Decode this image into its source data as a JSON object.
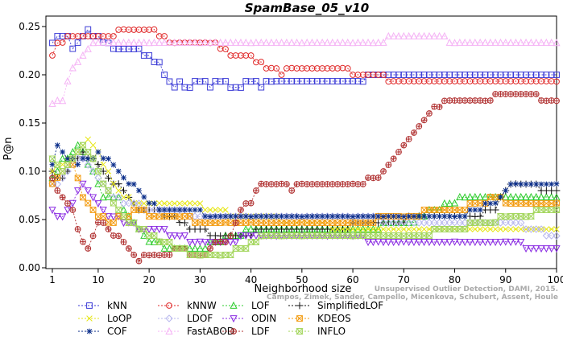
{
  "chart_data": {
    "type": "line",
    "title": "SpamBase_05_v10",
    "xlabel": "Neighborhood size",
    "ylabel": "P@n",
    "xlim": [
      1,
      100
    ],
    "ylim": [
      0,
      0.25
    ],
    "x_ticks": [
      1,
      10,
      20,
      30,
      40,
      50,
      60,
      70,
      80,
      90,
      100
    ],
    "y_ticks": [
      0.0,
      0.05,
      0.1,
      0.15,
      0.2,
      0.25
    ],
    "grid": false,
    "legend_position": "bottom",
    "series": [
      {
        "name": "kNN",
        "color": "#3b3bd6",
        "marker": "square",
        "dash": "2,2",
        "keypoints": [
          [
            1,
            0.233
          ],
          [
            2,
            0.24
          ],
          [
            4,
            0.24
          ],
          [
            5,
            0.227
          ],
          [
            7,
            0.24
          ],
          [
            8,
            0.247
          ],
          [
            9,
            0.24
          ],
          [
            12,
            0.233
          ],
          [
            13,
            0.227
          ],
          [
            18,
            0.227
          ],
          [
            19,
            0.22
          ],
          [
            22,
            0.213
          ],
          [
            23,
            0.2
          ],
          [
            24,
            0.193
          ],
          [
            25,
            0.187
          ],
          [
            26,
            0.193
          ],
          [
            27,
            0.187
          ],
          [
            30,
            0.193
          ],
          [
            32,
            0.187
          ],
          [
            34,
            0.193
          ],
          [
            37,
            0.187
          ],
          [
            40,
            0.193
          ],
          [
            42,
            0.187
          ],
          [
            44,
            0.193
          ],
          [
            62,
            0.193
          ],
          [
            63,
            0.2
          ],
          [
            100,
            0.2
          ]
        ]
      },
      {
        "name": "kNNW",
        "color": "#e02a2a",
        "marker": "circle",
        "dash": "2,2",
        "keypoints": [
          [
            1,
            0.22
          ],
          [
            2,
            0.233
          ],
          [
            4,
            0.24
          ],
          [
            10,
            0.24
          ],
          [
            12,
            0.24
          ],
          [
            13,
            0.24
          ],
          [
            15,
            0.247
          ],
          [
            21,
            0.247
          ],
          [
            22,
            0.24
          ],
          [
            25,
            0.233
          ],
          [
            32,
            0.233
          ],
          [
            34,
            0.227
          ],
          [
            37,
            0.22
          ],
          [
            40,
            0.22
          ],
          [
            41,
            0.213
          ],
          [
            44,
            0.207
          ],
          [
            46,
            0.2
          ],
          [
            48,
            0.207
          ],
          [
            58,
            0.207
          ],
          [
            60,
            0.2
          ],
          [
            66,
            0.2
          ],
          [
            67,
            0.193
          ],
          [
            100,
            0.193
          ]
        ]
      },
      {
        "name": "LOF",
        "color": "#2ecc2e",
        "marker": "triangle-up",
        "dash": "2,2",
        "keypoints": [
          [
            1,
            0.093
          ],
          [
            3,
            0.113
          ],
          [
            5,
            0.12
          ],
          [
            6,
            0.127
          ],
          [
            7,
            0.12
          ],
          [
            8,
            0.107
          ],
          [
            9,
            0.1
          ],
          [
            10,
            0.087
          ],
          [
            11,
            0.073
          ],
          [
            14,
            0.073
          ],
          [
            15,
            0.06
          ],
          [
            18,
            0.04
          ],
          [
            20,
            0.027
          ],
          [
            24,
            0.02
          ],
          [
            30,
            0.02
          ],
          [
            36,
            0.033
          ],
          [
            40,
            0.04
          ],
          [
            55,
            0.04
          ],
          [
            60,
            0.04
          ],
          [
            72,
            0.047
          ],
          [
            76,
            0.06
          ],
          [
            80,
            0.067
          ],
          [
            82,
            0.073
          ],
          [
            100,
            0.073
          ]
        ]
      },
      {
        "name": "SimplifiedLOF",
        "color": "#111111",
        "marker": "plus",
        "dash": "2,2",
        "keypoints": [
          [
            1,
            0.1
          ],
          [
            3,
            0.093
          ],
          [
            5,
            0.113
          ],
          [
            7,
            0.12
          ],
          [
            9,
            0.113
          ],
          [
            10,
            0.107
          ],
          [
            11,
            0.1
          ],
          [
            12,
            0.093
          ],
          [
            14,
            0.087
          ],
          [
            16,
            0.073
          ],
          [
            18,
            0.06
          ],
          [
            22,
            0.06
          ],
          [
            24,
            0.053
          ],
          [
            26,
            0.047
          ],
          [
            28,
            0.04
          ],
          [
            30,
            0.04
          ],
          [
            34,
            0.033
          ],
          [
            38,
            0.033
          ],
          [
            42,
            0.04
          ],
          [
            56,
            0.04
          ],
          [
            64,
            0.047
          ],
          [
            70,
            0.047
          ],
          [
            72,
            0.053
          ],
          [
            84,
            0.053
          ],
          [
            86,
            0.06
          ],
          [
            88,
            0.06
          ],
          [
            90,
            0.08
          ],
          [
            92,
            0.087
          ],
          [
            100,
            0.08
          ]
        ]
      },
      {
        "name": "LoOP",
        "color": "#e6e617",
        "marker": "x",
        "dash": "2,2",
        "keypoints": [
          [
            1,
            0.1
          ],
          [
            3,
            0.107
          ],
          [
            6,
            0.12
          ],
          [
            8,
            0.133
          ],
          [
            9,
            0.127
          ],
          [
            10,
            0.12
          ],
          [
            11,
            0.107
          ],
          [
            13,
            0.087
          ],
          [
            15,
            0.073
          ],
          [
            18,
            0.067
          ],
          [
            22,
            0.067
          ],
          [
            28,
            0.067
          ],
          [
            32,
            0.06
          ],
          [
            40,
            0.053
          ],
          [
            50,
            0.047
          ],
          [
            60,
            0.04
          ],
          [
            70,
            0.04
          ],
          [
            80,
            0.04
          ],
          [
            90,
            0.04
          ],
          [
            100,
            0.04
          ]
        ]
      },
      {
        "name": "LDOF",
        "color": "#b8b8ee",
        "marker": "diamond",
        "dash": "2,2",
        "keypoints": [
          [
            1,
            0.087
          ],
          [
            3,
            0.093
          ],
          [
            5,
            0.107
          ],
          [
            7,
            0.113
          ],
          [
            9,
            0.1
          ],
          [
            11,
            0.087
          ],
          [
            13,
            0.073
          ],
          [
            16,
            0.067
          ],
          [
            20,
            0.06
          ],
          [
            25,
            0.06
          ],
          [
            30,
            0.053
          ],
          [
            40,
            0.053
          ],
          [
            50,
            0.053
          ],
          [
            60,
            0.053
          ],
          [
            70,
            0.047
          ],
          [
            80,
            0.047
          ],
          [
            90,
            0.047
          ],
          [
            96,
            0.04
          ],
          [
            100,
            0.033
          ]
        ]
      },
      {
        "name": "ODIN",
        "color": "#8a2be2",
        "marker": "triangle-down",
        "dash": "2,2",
        "keypoints": [
          [
            1,
            0.06
          ],
          [
            3,
            0.053
          ],
          [
            5,
            0.067
          ],
          [
            7,
            0.087
          ],
          [
            9,
            0.073
          ],
          [
            11,
            0.06
          ],
          [
            13,
            0.053
          ],
          [
            16,
            0.047
          ],
          [
            18,
            0.04
          ],
          [
            22,
            0.04
          ],
          [
            26,
            0.033
          ],
          [
            30,
            0.027
          ],
          [
            35,
            0.027
          ],
          [
            40,
            0.033
          ],
          [
            45,
            0.033
          ],
          [
            55,
            0.033
          ],
          [
            60,
            0.033
          ],
          [
            65,
            0.027
          ],
          [
            70,
            0.027
          ],
          [
            80,
            0.027
          ],
          [
            90,
            0.027
          ],
          [
            92,
            0.027
          ],
          [
            94,
            0.02
          ],
          [
            100,
            0.02
          ]
        ]
      },
      {
        "name": "KDEOS",
        "color": "#f39c12",
        "marker": "square-x",
        "dash": "2,2",
        "keypoints": [
          [
            1,
            0.087
          ],
          [
            3,
            0.1
          ],
          [
            5,
            0.107
          ],
          [
            6,
            0.093
          ],
          [
            7,
            0.073
          ],
          [
            8,
            0.067
          ],
          [
            9,
            0.06
          ],
          [
            10,
            0.053
          ],
          [
            12,
            0.047
          ],
          [
            15,
            0.053
          ],
          [
            18,
            0.06
          ],
          [
            22,
            0.053
          ],
          [
            26,
            0.053
          ],
          [
            30,
            0.047
          ],
          [
            35,
            0.047
          ],
          [
            40,
            0.047
          ],
          [
            50,
            0.047
          ],
          [
            60,
            0.047
          ],
          [
            70,
            0.053
          ],
          [
            76,
            0.06
          ],
          [
            80,
            0.06
          ],
          [
            85,
            0.067
          ],
          [
            88,
            0.073
          ],
          [
            90,
            0.067
          ],
          [
            100,
            0.067
          ]
        ]
      },
      {
        "name": "COF",
        "color": "#0b2e8a",
        "marker": "star",
        "dash": "2,2",
        "keypoints": [
          [
            1,
            0.107
          ],
          [
            2,
            0.127
          ],
          [
            4,
            0.113
          ],
          [
            6,
            0.107
          ],
          [
            8,
            0.113
          ],
          [
            10,
            0.12
          ],
          [
            12,
            0.113
          ],
          [
            14,
            0.1
          ],
          [
            16,
            0.087
          ],
          [
            18,
            0.08
          ],
          [
            20,
            0.067
          ],
          [
            22,
            0.06
          ],
          [
            30,
            0.06
          ],
          [
            32,
            0.053
          ],
          [
            40,
            0.053
          ],
          [
            50,
            0.053
          ],
          [
            60,
            0.053
          ],
          [
            66,
            0.053
          ],
          [
            70,
            0.053
          ],
          [
            80,
            0.053
          ],
          [
            88,
            0.067
          ],
          [
            90,
            0.08
          ],
          [
            92,
            0.087
          ],
          [
            100,
            0.087
          ]
        ]
      },
      {
        "name": "FastABOD",
        "color": "#f5b3f5",
        "marker": "triangle-up",
        "dash": "2,2",
        "keypoints": [
          [
            1,
            0.17
          ],
          [
            3,
            0.173
          ],
          [
            5,
            0.207
          ],
          [
            7,
            0.22
          ],
          [
            9,
            0.233
          ],
          [
            12,
            0.233
          ],
          [
            20,
            0.233
          ],
          [
            30,
            0.233
          ],
          [
            40,
            0.233
          ],
          [
            50,
            0.233
          ],
          [
            60,
            0.233
          ],
          [
            64,
            0.233
          ],
          [
            68,
            0.24
          ],
          [
            78,
            0.24
          ],
          [
            80,
            0.233
          ],
          [
            100,
            0.233
          ]
        ]
      },
      {
        "name": "LDF",
        "color": "#b03030",
        "marker": "circle-plus",
        "dash": "2,2",
        "keypoints": [
          [
            1,
            0.093
          ],
          [
            3,
            0.073
          ],
          [
            5,
            0.06
          ],
          [
            6,
            0.04
          ],
          [
            7,
            0.027
          ],
          [
            8,
            0.02
          ],
          [
            9,
            0.033
          ],
          [
            10,
            0.047
          ],
          [
            12,
            0.04
          ],
          [
            14,
            0.033
          ],
          [
            16,
            0.02
          ],
          [
            18,
            0.007
          ],
          [
            20,
            0.013
          ],
          [
            22,
            0.013
          ],
          [
            26,
            0.02
          ],
          [
            30,
            0.013
          ],
          [
            34,
            0.027
          ],
          [
            36,
            0.033
          ],
          [
            38,
            0.06
          ],
          [
            40,
            0.067
          ],
          [
            42,
            0.087
          ],
          [
            46,
            0.087
          ],
          [
            48,
            0.08
          ],
          [
            50,
            0.087
          ],
          [
            60,
            0.087
          ],
          [
            64,
            0.093
          ],
          [
            66,
            0.1
          ],
          [
            68,
            0.113
          ],
          [
            70,
            0.127
          ],
          [
            72,
            0.14
          ],
          [
            74,
            0.153
          ],
          [
            76,
            0.167
          ],
          [
            78,
            0.173
          ],
          [
            86,
            0.173
          ],
          [
            88,
            0.18
          ],
          [
            94,
            0.18
          ],
          [
            96,
            0.18
          ],
          [
            98,
            0.173
          ],
          [
            100,
            0.173
          ]
        ]
      },
      {
        "name": "INFLO",
        "color": "#a4d65e",
        "marker": "hourglass",
        "dash": "2,2",
        "keypoints": [
          [
            1,
            0.113
          ],
          [
            3,
            0.1
          ],
          [
            5,
            0.113
          ],
          [
            7,
            0.127
          ],
          [
            9,
            0.113
          ],
          [
            11,
            0.087
          ],
          [
            13,
            0.067
          ],
          [
            15,
            0.053
          ],
          [
            18,
            0.04
          ],
          [
            22,
            0.027
          ],
          [
            26,
            0.02
          ],
          [
            30,
            0.013
          ],
          [
            34,
            0.013
          ],
          [
            38,
            0.02
          ],
          [
            42,
            0.033
          ],
          [
            46,
            0.033
          ],
          [
            50,
            0.033
          ],
          [
            60,
            0.033
          ],
          [
            70,
            0.033
          ],
          [
            80,
            0.04
          ],
          [
            85,
            0.047
          ],
          [
            88,
            0.047
          ],
          [
            90,
            0.053
          ],
          [
            94,
            0.053
          ],
          [
            97,
            0.06
          ],
          [
            100,
            0.06
          ]
        ]
      }
    ]
  },
  "credit": {
    "line1": "Unsupervised Outlier Detection, DAMI, 2015.",
    "line2": "Campos, Zimek, Sander, Campello, Micenkova, Schubert, Assent, Houle"
  }
}
